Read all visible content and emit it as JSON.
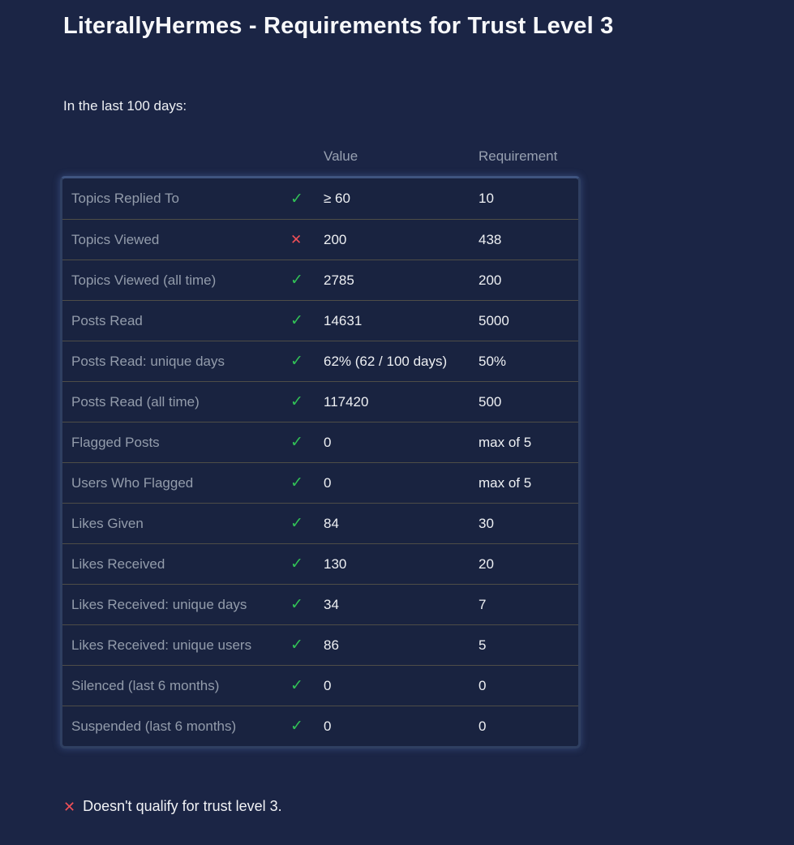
{
  "page": {
    "title": "LiterallyHermes - Requirements for Trust Level 3",
    "subtitle": "In the last 100 days:"
  },
  "icons": {
    "pass": "✓",
    "fail": "✕"
  },
  "colors": {
    "background": "#1b2545",
    "table_background": "#192340",
    "table_border": "#3f5480",
    "row_divider": "#4e4d47",
    "pass_green": "#31c156",
    "fail_red": "#ee4f57",
    "label_gray": "#939cab",
    "header_gray": "#98a1b1",
    "text_white": "#eef0f3"
  },
  "table": {
    "headers": {
      "metric": "",
      "value": "Value",
      "requirement": "Requirement"
    },
    "rows": [
      {
        "label": "Topics Replied To",
        "status": "pass",
        "value": "≥ 60",
        "requirement": "10"
      },
      {
        "label": "Topics Viewed",
        "status": "fail",
        "value": "200",
        "requirement": "438"
      },
      {
        "label": "Topics Viewed (all time)",
        "status": "pass",
        "value": "2785",
        "requirement": "200"
      },
      {
        "label": "Posts Read",
        "status": "pass",
        "value": "14631",
        "requirement": "5000"
      },
      {
        "label": "Posts Read: unique days",
        "status": "pass",
        "value": "62% (62 / 100 days)",
        "requirement": "50%"
      },
      {
        "label": "Posts Read (all time)",
        "status": "pass",
        "value": "117420",
        "requirement": "500"
      },
      {
        "label": "Flagged Posts",
        "status": "pass",
        "value": "0",
        "requirement": "max of 5"
      },
      {
        "label": "Users Who Flagged",
        "status": "pass",
        "value": "0",
        "requirement": "max of 5"
      },
      {
        "label": "Likes Given",
        "status": "pass",
        "value": "84",
        "requirement": "30"
      },
      {
        "label": "Likes Received",
        "status": "pass",
        "value": "130",
        "requirement": "20"
      },
      {
        "label": "Likes Received: unique days",
        "status": "pass",
        "value": "34",
        "requirement": "7"
      },
      {
        "label": "Likes Received: unique users",
        "status": "pass",
        "value": "86",
        "requirement": "5"
      },
      {
        "label": "Silenced (last 6 months)",
        "status": "pass",
        "value": "0",
        "requirement": "0"
      },
      {
        "label": "Suspended (last 6 months)",
        "status": "pass",
        "value": "0",
        "requirement": "0"
      }
    ]
  },
  "verdict": {
    "text": "Doesn't qualify for trust level 3."
  }
}
